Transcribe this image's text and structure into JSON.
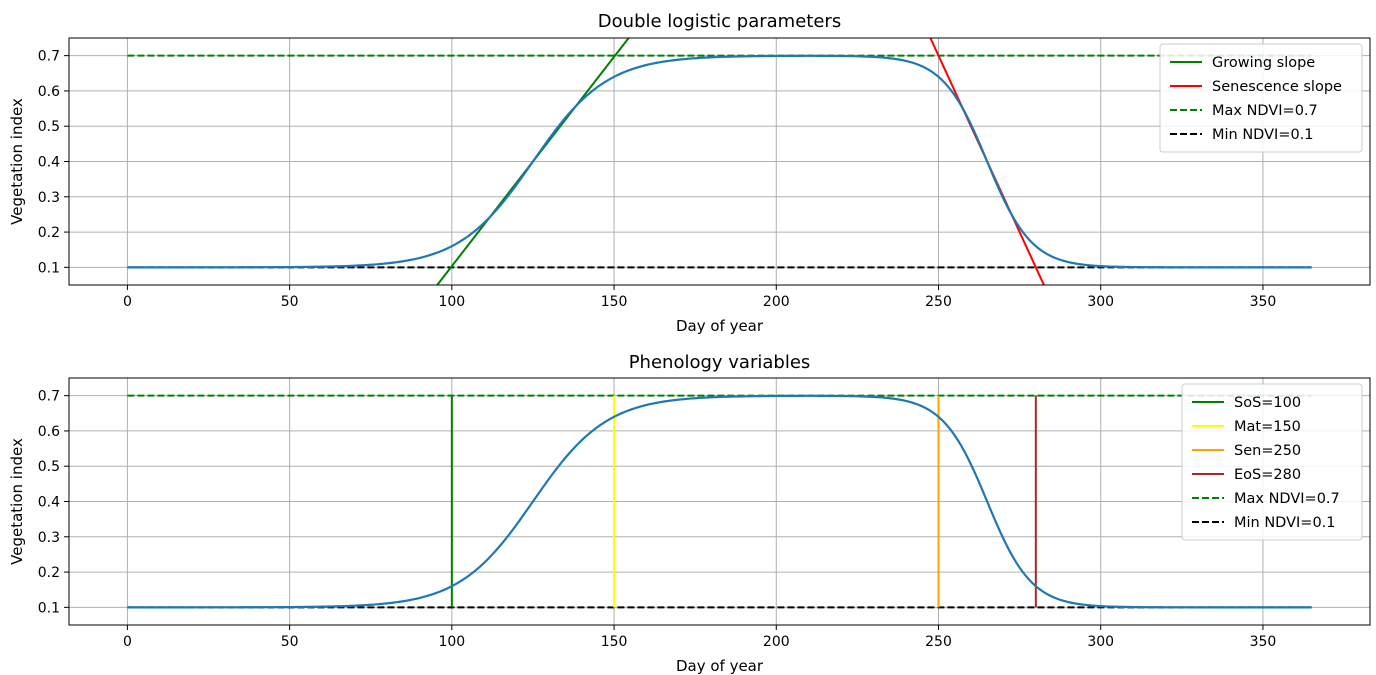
{
  "chart_data": [
    {
      "type": "line",
      "title": "Double logistic parameters",
      "xlabel": "Day of year",
      "ylabel": "Vegetation index",
      "xlim": [
        -18,
        383
      ],
      "ylim": [
        0.05,
        0.75
      ],
      "xticks": [
        0,
        50,
        100,
        150,
        200,
        250,
        300,
        350
      ],
      "yticks": [
        0.1,
        0.2,
        0.3,
        0.4,
        0.5,
        0.6,
        0.7
      ],
      "grid": true,
      "legend_position": "top-right",
      "curve": {
        "color": "#1f77b4",
        "x_range": [
          0,
          365
        ],
        "min": 0.1,
        "max": 0.7,
        "sos": 100,
        "mat": 150,
        "sen": 250,
        "eos": 280
      },
      "series": [
        {
          "name": "Growing slope",
          "style": "solid",
          "color": "#008000",
          "x": [
            95.5,
            154.5
          ],
          "y": [
            0.05,
            0.75
          ]
        },
        {
          "name": "Senescence slope",
          "style": "solid",
          "color": "#ff0000",
          "x": [
            247.5,
            282.5
          ],
          "y": [
            0.75,
            0.05
          ]
        },
        {
          "name": "Max NDVI=0.7",
          "style": "dashed",
          "color": "#008000",
          "x": [
            0,
            365
          ],
          "y": [
            0.7,
            0.7
          ]
        },
        {
          "name": "Min NDVI=0.1",
          "style": "dashed",
          "color": "#000000",
          "x": [
            0,
            365
          ],
          "y": [
            0.1,
            0.1
          ]
        }
      ]
    },
    {
      "type": "line",
      "title": "Phenology variables",
      "xlabel": "Day of year",
      "ylabel": "Vegetation index",
      "xlim": [
        -18,
        383
      ],
      "ylim": [
        0.05,
        0.75
      ],
      "xticks": [
        0,
        50,
        100,
        150,
        200,
        250,
        300,
        350
      ],
      "yticks": [
        0.1,
        0.2,
        0.3,
        0.4,
        0.5,
        0.6,
        0.7
      ],
      "grid": true,
      "legend_position": "top-right",
      "curve": {
        "color": "#1f77b4",
        "x_range": [
          0,
          365
        ],
        "min": 0.1,
        "max": 0.7,
        "sos": 100,
        "mat": 150,
        "sen": 250,
        "eos": 280
      },
      "series": [
        {
          "name": "SoS=100",
          "style": "solid",
          "color": "#008000",
          "x": [
            100,
            100
          ],
          "y": [
            0.1,
            0.7
          ]
        },
        {
          "name": "Mat=150",
          "style": "solid",
          "color": "#ffff00",
          "x": [
            150,
            150
          ],
          "y": [
            0.1,
            0.7
          ]
        },
        {
          "name": "Sen=250",
          "style": "solid",
          "color": "#ffa500",
          "x": [
            250,
            250
          ],
          "y": [
            0.1,
            0.7
          ]
        },
        {
          "name": "EoS=280",
          "style": "solid",
          "color": "#a52a2a",
          "x": [
            280,
            280
          ],
          "y": [
            0.1,
            0.7
          ]
        },
        {
          "name": "Max NDVI=0.7",
          "style": "dashed",
          "color": "#008000",
          "x": [
            0,
            365
          ],
          "y": [
            0.7,
            0.7
          ]
        },
        {
          "name": "Min NDVI=0.1",
          "style": "dashed",
          "color": "#000000",
          "x": [
            0,
            365
          ],
          "y": [
            0.1,
            0.1
          ]
        }
      ]
    }
  ]
}
